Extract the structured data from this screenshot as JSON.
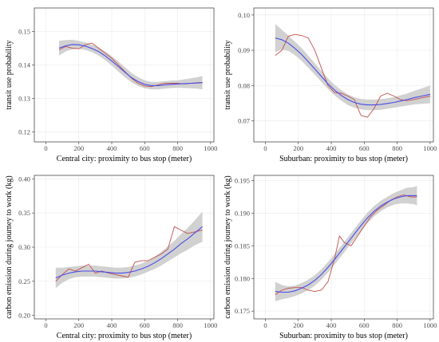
{
  "chart_data": [
    {
      "type": "line",
      "xlabel": "Central city: proximity to bus stop (meter)",
      "ylabel": "transit use probability",
      "xlim": [
        -70,
        1020
      ],
      "ylim": [
        0.117,
        0.157
      ],
      "xticks": [
        0,
        200,
        400,
        600,
        800,
        1000
      ],
      "yticks": [
        0.12,
        0.13,
        0.14,
        0.15
      ],
      "ytick_labels": [
        "0.12",
        "0.13",
        "0.14",
        "0.15"
      ],
      "grid": true,
      "series": [
        {
          "kind": "raw",
          "color": "#c0504d",
          "x": [
            80,
            120,
            160,
            200,
            240,
            280,
            320,
            360,
            400,
            440,
            480,
            520,
            560,
            600,
            640,
            680,
            720,
            760,
            800,
            840,
            880,
            920,
            950
          ],
          "y": [
            0.1445,
            0.1455,
            0.145,
            0.1448,
            0.146,
            0.1465,
            0.145,
            0.1435,
            0.142,
            0.14,
            0.138,
            0.136,
            0.1345,
            0.1337,
            0.1335,
            0.134,
            0.1345,
            0.1345,
            0.1345,
            0.1343,
            0.1345,
            0.1347,
            0.1347
          ]
        },
        {
          "kind": "smooth",
          "color": "#4a4ae8",
          "x": [
            80,
            120,
            160,
            200,
            240,
            280,
            320,
            360,
            400,
            440,
            480,
            520,
            560,
            600,
            640,
            680,
            720,
            760,
            800,
            840,
            880,
            920,
            950
          ],
          "y": [
            0.145,
            0.1457,
            0.1461,
            0.146,
            0.1456,
            0.1449,
            0.144,
            0.1427,
            0.1412,
            0.1395,
            0.1378,
            0.1362,
            0.135,
            0.1342,
            0.1338,
            0.1338,
            0.134,
            0.1342,
            0.1343,
            0.1344,
            0.1345,
            0.1346,
            0.1347
          ],
          "lower": [
            0.1428,
            0.144,
            0.1447,
            0.1448,
            0.1445,
            0.1438,
            0.1428,
            0.1414,
            0.1398,
            0.138,
            0.1363,
            0.1348,
            0.1337,
            0.133,
            0.1327,
            0.1327,
            0.1329,
            0.1331,
            0.1332,
            0.1331,
            0.133,
            0.1329,
            0.1327
          ],
          "upper": [
            0.1472,
            0.1474,
            0.1475,
            0.1472,
            0.1467,
            0.146,
            0.1452,
            0.144,
            0.1426,
            0.141,
            0.1393,
            0.1376,
            0.1363,
            0.1354,
            0.1349,
            0.1349,
            0.1351,
            0.1353,
            0.1354,
            0.1357,
            0.136,
            0.1363,
            0.1367
          ]
        }
      ]
    },
    {
      "type": "line",
      "xlabel": "Suburban: proximity to bus stop (meter)",
      "ylabel": "transit use probability",
      "xlim": [
        -70,
        1020
      ],
      "ylim": [
        0.064,
        0.102
      ],
      "xticks": [
        0,
        200,
        400,
        600,
        800,
        1000
      ],
      "yticks": [
        0.07,
        0.08,
        0.09,
        0.1
      ],
      "ytick_labels": [
        "0.07",
        "0.08",
        "0.09",
        "0.10"
      ],
      "grid": true,
      "series": [
        {
          "kind": "raw",
          "color": "#c0504d",
          "x": [
            60,
            100,
            140,
            180,
            220,
            260,
            300,
            340,
            380,
            420,
            460,
            500,
            540,
            580,
            620,
            660,
            700,
            740,
            780,
            820,
            860,
            900,
            950,
            1000
          ],
          "y": [
            0.0885,
            0.09,
            0.094,
            0.0945,
            0.0942,
            0.0935,
            0.09,
            0.085,
            0.08,
            0.078,
            0.0778,
            0.077,
            0.076,
            0.0715,
            0.071,
            0.0735,
            0.077,
            0.0778,
            0.077,
            0.076,
            0.0757,
            0.076,
            0.0765,
            0.077
          ]
        },
        {
          "kind": "smooth",
          "color": "#4a4ae8",
          "x": [
            60,
            100,
            140,
            180,
            220,
            260,
            300,
            340,
            380,
            420,
            460,
            500,
            540,
            580,
            620,
            660,
            700,
            740,
            780,
            820,
            860,
            900,
            950,
            1000
          ],
          "y": [
            0.0935,
            0.093,
            0.092,
            0.0905,
            0.0888,
            0.0868,
            0.0847,
            0.0826,
            0.0805,
            0.0787,
            0.0772,
            0.076,
            0.0752,
            0.0747,
            0.0745,
            0.0745,
            0.0746,
            0.0749,
            0.0752,
            0.0756,
            0.076,
            0.0765,
            0.077,
            0.0775
          ],
          "lower": [
            0.0895,
            0.0902,
            0.0898,
            0.0886,
            0.087,
            0.0851,
            0.0831,
            0.081,
            0.079,
            0.0772,
            0.0757,
            0.0745,
            0.0737,
            0.0732,
            0.073,
            0.073,
            0.0731,
            0.0734,
            0.0737,
            0.074,
            0.0743,
            0.0746,
            0.0748,
            0.075
          ],
          "upper": [
            0.0975,
            0.0958,
            0.0942,
            0.0924,
            0.0906,
            0.0885,
            0.0863,
            0.0842,
            0.082,
            0.0802,
            0.0787,
            0.0775,
            0.0767,
            0.0762,
            0.076,
            0.076,
            0.0761,
            0.0764,
            0.0767,
            0.0772,
            0.0777,
            0.0784,
            0.0792,
            0.08
          ]
        }
      ]
    },
    {
      "type": "line",
      "xlabel": "Central city: proximity to bus stop (meter)",
      "ylabel": "carbon emission during journey to work (kg)",
      "xlim": [
        -70,
        1020
      ],
      "ylim": [
        0.195,
        0.405
      ],
      "xticks": [
        0,
        200,
        400,
        600,
        800,
        1000
      ],
      "yticks": [
        0.2,
        0.25,
        0.3,
        0.35,
        0.4
      ],
      "ytick_labels": [
        "0.20",
        "0.25",
        "0.30",
        "0.35",
        "0.40"
      ],
      "grid": true,
      "series": [
        {
          "kind": "raw",
          "color": "#c0504d",
          "x": [
            60,
            100,
            140,
            180,
            220,
            260,
            300,
            340,
            380,
            420,
            460,
            500,
            540,
            580,
            620,
            660,
            700,
            740,
            780,
            820,
            860,
            900,
            950
          ],
          "y": [
            0.25,
            0.26,
            0.268,
            0.265,
            0.27,
            0.275,
            0.262,
            0.265,
            0.262,
            0.26,
            0.258,
            0.256,
            0.278,
            0.28,
            0.28,
            0.285,
            0.29,
            0.297,
            0.33,
            0.325,
            0.32,
            0.322,
            0.325
          ]
        },
        {
          "kind": "smooth",
          "color": "#4a4ae8",
          "x": [
            60,
            100,
            140,
            180,
            220,
            260,
            300,
            340,
            380,
            420,
            460,
            500,
            540,
            580,
            620,
            660,
            700,
            740,
            780,
            820,
            860,
            900,
            950
          ],
          "y": [
            0.255,
            0.259,
            0.262,
            0.264,
            0.265,
            0.265,
            0.265,
            0.264,
            0.263,
            0.262,
            0.262,
            0.263,
            0.265,
            0.268,
            0.272,
            0.277,
            0.283,
            0.29,
            0.297,
            0.305,
            0.312,
            0.32,
            0.33
          ],
          "lower": [
            0.24,
            0.248,
            0.253,
            0.256,
            0.257,
            0.257,
            0.257,
            0.256,
            0.255,
            0.254,
            0.254,
            0.255,
            0.257,
            0.26,
            0.264,
            0.268,
            0.273,
            0.279,
            0.285,
            0.291,
            0.296,
            0.302,
            0.308
          ],
          "upper": [
            0.27,
            0.27,
            0.271,
            0.272,
            0.273,
            0.273,
            0.273,
            0.272,
            0.271,
            0.27,
            0.27,
            0.271,
            0.273,
            0.276,
            0.28,
            0.286,
            0.293,
            0.301,
            0.309,
            0.319,
            0.328,
            0.338,
            0.352
          ]
        }
      ]
    },
    {
      "type": "line",
      "xlabel": "Suburban: proximity to bus stop (meter)",
      "ylabel": "carbon emission during journey to work (kg)",
      "xlim": [
        -70,
        1020
      ],
      "ylim": [
        0.1738,
        0.1958
      ],
      "xticks": [
        0,
        200,
        400,
        600,
        800,
        1000
      ],
      "yticks": [
        0.175,
        0.18,
        0.185,
        0.19,
        0.195
      ],
      "ytick_labels": [
        "0.175",
        "0.180",
        "0.185",
        "0.190",
        "0.195"
      ],
      "grid": true,
      "series": [
        {
          "kind": "raw",
          "color": "#c0504d",
          "x": [
            60,
            100,
            140,
            180,
            220,
            260,
            300,
            340,
            380,
            420,
            450,
            480,
            520,
            560,
            600,
            640,
            680,
            720,
            760,
            800,
            840,
            880,
            920
          ],
          "y": [
            0.1775,
            0.1782,
            0.1785,
            0.1786,
            0.1786,
            0.1782,
            0.178,
            0.1782,
            0.1795,
            0.183,
            0.1865,
            0.1855,
            0.185,
            0.1865,
            0.188,
            0.1895,
            0.1905,
            0.1912,
            0.192,
            0.1925,
            0.1928,
            0.1925,
            0.1925
          ]
        },
        {
          "kind": "smooth",
          "color": "#4a4ae8",
          "x": [
            60,
            100,
            140,
            180,
            220,
            260,
            300,
            340,
            380,
            420,
            460,
            500,
            540,
            580,
            620,
            660,
            700,
            740,
            780,
            820,
            860,
            900,
            920
          ],
          "y": [
            0.178,
            0.1779,
            0.1779,
            0.1781,
            0.1785,
            0.179,
            0.1797,
            0.1806,
            0.1817,
            0.1829,
            0.1842,
            0.1855,
            0.1868,
            0.1881,
            0.1893,
            0.1903,
            0.1911,
            0.1917,
            0.1922,
            0.1925,
            0.1927,
            0.1927,
            0.1927
          ],
          "lower": [
            0.1765,
            0.1768,
            0.177,
            0.1773,
            0.1777,
            0.1782,
            0.1789,
            0.1798,
            0.1809,
            0.1821,
            0.1834,
            0.1847,
            0.186,
            0.1873,
            0.1885,
            0.1895,
            0.1903,
            0.1909,
            0.1913,
            0.1915,
            0.1915,
            0.1914,
            0.1912
          ],
          "upper": [
            0.1795,
            0.179,
            0.1788,
            0.1789,
            0.1793,
            0.1798,
            0.1805,
            0.1814,
            0.1825,
            0.1837,
            0.185,
            0.1863,
            0.1876,
            0.1889,
            0.1901,
            0.1911,
            0.1919,
            0.1925,
            0.1931,
            0.1935,
            0.1939,
            0.194,
            0.1942
          ]
        }
      ]
    }
  ]
}
